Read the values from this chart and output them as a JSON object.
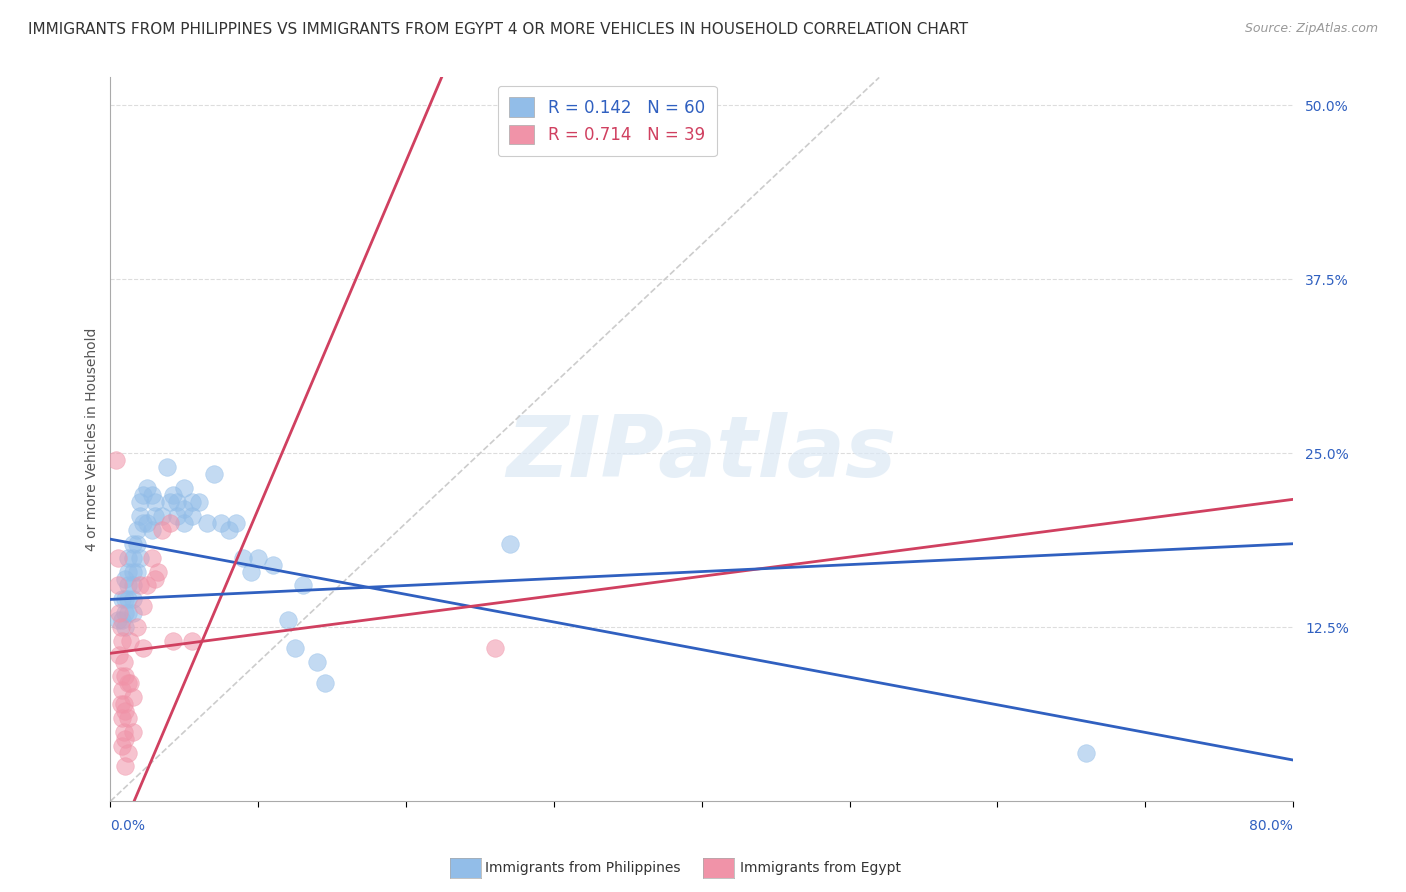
{
  "title": "IMMIGRANTS FROM PHILIPPINES VS IMMIGRANTS FROM EGYPT 4 OR MORE VEHICLES IN HOUSEHOLD CORRELATION CHART",
  "source": "Source: ZipAtlas.com",
  "ylabel": "4 or more Vehicles in Household",
  "xlim": [
    0.0,
    0.8
  ],
  "ylim": [
    0.0,
    0.52
  ],
  "legend_entry1": "R = 0.142   N = 60",
  "legend_entry2": "R = 0.714   N = 39",
  "legend_label1": "Immigrants from Philippines",
  "legend_label2": "Immigrants from Egypt",
  "philippines_color": "#92bde8",
  "egypt_color": "#f093a8",
  "blue_line_color": "#3060c0",
  "pink_line_color": "#d04060",
  "diagonal_color": "#cccccc",
  "grid_color": "#dddddd",
  "background_color": "#ffffff",
  "philippines_points": [
    [
      0.005,
      0.13
    ],
    [
      0.008,
      0.145
    ],
    [
      0.008,
      0.13
    ],
    [
      0.01,
      0.16
    ],
    [
      0.01,
      0.145
    ],
    [
      0.01,
      0.135
    ],
    [
      0.01,
      0.125
    ],
    [
      0.012,
      0.175
    ],
    [
      0.012,
      0.165
    ],
    [
      0.012,
      0.155
    ],
    [
      0.012,
      0.145
    ],
    [
      0.012,
      0.135
    ],
    [
      0.015,
      0.185
    ],
    [
      0.015,
      0.175
    ],
    [
      0.015,
      0.165
    ],
    [
      0.015,
      0.155
    ],
    [
      0.015,
      0.145
    ],
    [
      0.015,
      0.135
    ],
    [
      0.018,
      0.195
    ],
    [
      0.018,
      0.185
    ],
    [
      0.018,
      0.165
    ],
    [
      0.02,
      0.215
    ],
    [
      0.02,
      0.205
    ],
    [
      0.02,
      0.175
    ],
    [
      0.022,
      0.22
    ],
    [
      0.022,
      0.2
    ],
    [
      0.025,
      0.225
    ],
    [
      0.025,
      0.2
    ],
    [
      0.028,
      0.22
    ],
    [
      0.028,
      0.195
    ],
    [
      0.03,
      0.215
    ],
    [
      0.03,
      0.205
    ],
    [
      0.035,
      0.205
    ],
    [
      0.038,
      0.24
    ],
    [
      0.04,
      0.215
    ],
    [
      0.042,
      0.22
    ],
    [
      0.045,
      0.215
    ],
    [
      0.045,
      0.205
    ],
    [
      0.05,
      0.225
    ],
    [
      0.05,
      0.21
    ],
    [
      0.05,
      0.2
    ],
    [
      0.055,
      0.215
    ],
    [
      0.055,
      0.205
    ],
    [
      0.06,
      0.215
    ],
    [
      0.065,
      0.2
    ],
    [
      0.07,
      0.235
    ],
    [
      0.075,
      0.2
    ],
    [
      0.08,
      0.195
    ],
    [
      0.085,
      0.2
    ],
    [
      0.09,
      0.175
    ],
    [
      0.095,
      0.165
    ],
    [
      0.1,
      0.175
    ],
    [
      0.11,
      0.17
    ],
    [
      0.12,
      0.13
    ],
    [
      0.125,
      0.11
    ],
    [
      0.13,
      0.155
    ],
    [
      0.14,
      0.1
    ],
    [
      0.145,
      0.085
    ],
    [
      0.27,
      0.185
    ],
    [
      0.66,
      0.035
    ]
  ],
  "egypt_points": [
    [
      0.004,
      0.245
    ],
    [
      0.005,
      0.175
    ],
    [
      0.005,
      0.155
    ],
    [
      0.006,
      0.135
    ],
    [
      0.006,
      0.105
    ],
    [
      0.007,
      0.125
    ],
    [
      0.007,
      0.09
    ],
    [
      0.007,
      0.07
    ],
    [
      0.008,
      0.115
    ],
    [
      0.008,
      0.08
    ],
    [
      0.008,
      0.06
    ],
    [
      0.008,
      0.04
    ],
    [
      0.009,
      0.1
    ],
    [
      0.009,
      0.07
    ],
    [
      0.009,
      0.05
    ],
    [
      0.01,
      0.09
    ],
    [
      0.01,
      0.065
    ],
    [
      0.01,
      0.045
    ],
    [
      0.01,
      0.025
    ],
    [
      0.012,
      0.085
    ],
    [
      0.012,
      0.06
    ],
    [
      0.012,
      0.035
    ],
    [
      0.013,
      0.115
    ],
    [
      0.013,
      0.085
    ],
    [
      0.015,
      0.075
    ],
    [
      0.015,
      0.05
    ],
    [
      0.018,
      0.125
    ],
    [
      0.02,
      0.155
    ],
    [
      0.022,
      0.14
    ],
    [
      0.022,
      0.11
    ],
    [
      0.025,
      0.155
    ],
    [
      0.028,
      0.175
    ],
    [
      0.03,
      0.16
    ],
    [
      0.032,
      0.165
    ],
    [
      0.035,
      0.195
    ],
    [
      0.04,
      0.2
    ],
    [
      0.042,
      0.115
    ],
    [
      0.055,
      0.115
    ],
    [
      0.26,
      0.11
    ]
  ],
  "title_fontsize": 11,
  "axis_label_fontsize": 10,
  "tick_fontsize": 10,
  "source_fontsize": 9
}
